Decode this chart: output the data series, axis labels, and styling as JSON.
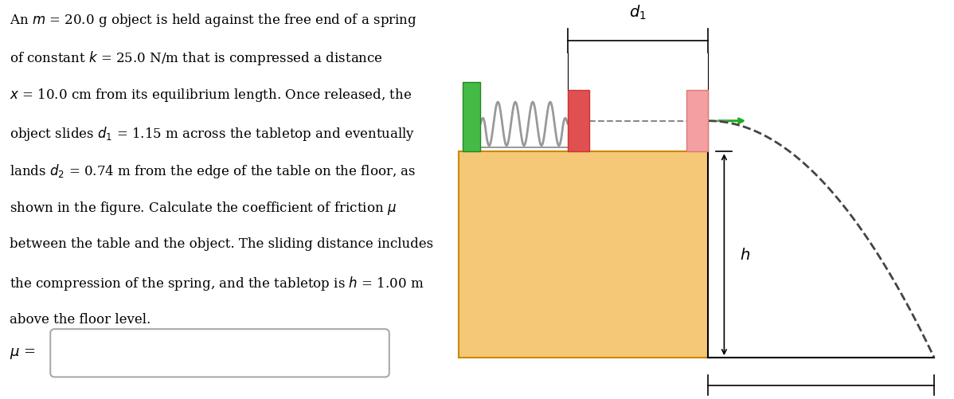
{
  "bg_color": "#ffffff",
  "text_lines": [
    "An $m$ = 20.0 g object is held against the free end of a spring",
    "of constant $k$ = 25.0 N/m that is compressed a distance",
    "$x$ = 10.0 cm from its equilibrium length. Once released, the",
    "object slides $d_1$ = 1.15 m across the tabletop and eventually",
    "lands $d_2$ = 0.74 m from the edge of the table on the floor, as",
    "shown in the figure. Calculate the coefficient of friction $\\mu$",
    "between the table and the object. The sliding distance includes",
    "the compression of the spring, and the tabletop is $h$ = 1.00 m",
    "above the floor level."
  ],
  "table_color": "#f5c878",
  "table_edge_color": "#cc8800",
  "green_color": "#44bb44",
  "red_block_color": "#e05050",
  "pink_block_color": "#f5a0a0",
  "spring_color": "#888888",
  "dim_color": "#333333",
  "arrow_color": "#22aa22"
}
